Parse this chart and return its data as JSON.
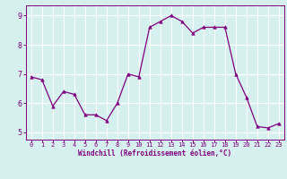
{
  "x": [
    0,
    1,
    2,
    3,
    4,
    5,
    6,
    7,
    8,
    9,
    10,
    11,
    12,
    13,
    14,
    15,
    16,
    17,
    18,
    19,
    20,
    21,
    22,
    23
  ],
  "y": [
    6.9,
    6.8,
    5.9,
    6.4,
    6.3,
    5.6,
    5.6,
    5.4,
    6.0,
    7.0,
    6.9,
    8.6,
    8.8,
    9.0,
    8.8,
    8.4,
    8.6,
    8.6,
    8.6,
    7.0,
    6.2,
    5.2,
    5.15,
    5.3
  ],
  "line_color": "#800080",
  "marker": "^",
  "marker_color": "#800080",
  "bg_color": "#d6f0f0",
  "grid_color": "#ffffff",
  "xlabel": "Windchill (Refroidissement éolien,°C)",
  "xlabel_color": "#800080",
  "tick_color": "#800080",
  "xlim": [
    -0.5,
    23.5
  ],
  "ylim": [
    4.75,
    9.35
  ],
  "yticks": [
    5,
    6,
    7,
    8,
    9
  ],
  "xticks": [
    0,
    1,
    2,
    3,
    4,
    5,
    6,
    7,
    8,
    9,
    10,
    11,
    12,
    13,
    14,
    15,
    16,
    17,
    18,
    19,
    20,
    21,
    22,
    23
  ]
}
